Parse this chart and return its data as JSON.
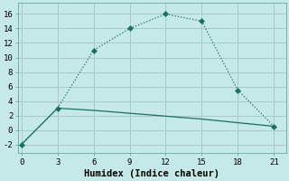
{
  "xlabel": "Humidex (Indice chaleur)",
  "background_color": "#c5e8e8",
  "grid_color": "#adc8c8",
  "line_color": "#1a7060",
  "line1_x": [
    0,
    3,
    6,
    9,
    12,
    15,
    18,
    21
  ],
  "line1_y": [
    -2,
    3,
    11,
    14,
    16,
    15,
    5.5,
    0.5
  ],
  "line2_x": [
    0,
    3,
    6,
    9,
    12,
    15,
    18,
    21
  ],
  "line2_y": [
    -2,
    3,
    2.7,
    2.3,
    1.9,
    1.5,
    1.0,
    0.5
  ],
  "xlim": [
    -0.3,
    22
  ],
  "ylim": [
    -3.2,
    17.5
  ],
  "xticks": [
    0,
    3,
    6,
    9,
    12,
    15,
    18,
    21
  ],
  "yticks": [
    -2,
    0,
    2,
    4,
    6,
    8,
    10,
    12,
    14,
    16
  ],
  "tick_fontsize": 6.5,
  "xlabel_fontsize": 7.5
}
